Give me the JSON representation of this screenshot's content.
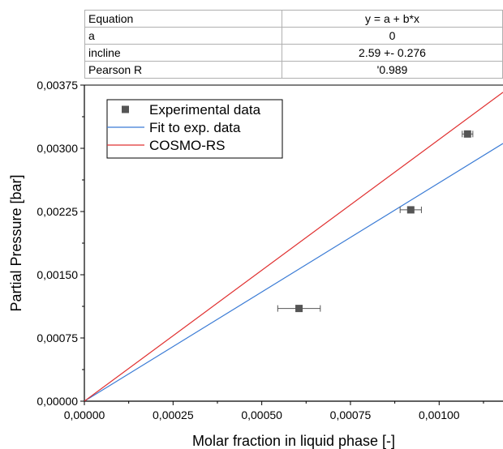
{
  "stats_table": {
    "rows": [
      {
        "label": "Equation",
        "value": "y = a + b*x"
      },
      {
        "label": "a",
        "value": "0"
      },
      {
        "label": "incline",
        "value": "2.59 +- 0.276"
      },
      {
        "label": "Pearson R",
        "value": "'0.989"
      }
    ]
  },
  "chart_data": {
    "type": "scatter",
    "title": "",
    "xlabel": "Molar fraction in liquid phase [-]",
    "ylabel": "Partial Pressure [bar]",
    "xlim": [
      0,
      0.00118
    ],
    "ylim": [
      0,
      0.00375
    ],
    "xticks": [
      0,
      0.00025,
      0.0005,
      0.00075,
      0.001
    ],
    "xtick_labels": [
      "0,00000",
      "0,00025",
      "0,00050",
      "0,00075",
      "0,00100"
    ],
    "yticks": [
      0,
      0.00075,
      0.0015,
      0.00225,
      0.003,
      0.00375
    ],
    "ytick_labels": [
      "0,00000",
      "0,00075",
      "0,00150",
      "0,00225",
      "0,00300",
      "0,00375"
    ],
    "grid": false,
    "legend_position": "top-left",
    "series": [
      {
        "name": "Experimental data",
        "kind": "points",
        "color": "#555555",
        "points": [
          {
            "x": 0.000605,
            "y": 0.0011,
            "xerr": 6e-05
          },
          {
            "x": 0.00092,
            "y": 0.00227,
            "xerr": 3e-05
          },
          {
            "x": 0.00108,
            "y": 0.00317,
            "xerr": 1.5e-05
          }
        ]
      },
      {
        "name": "Fit to exp. data",
        "kind": "line",
        "color": "#3a7bd5",
        "x": [
          0,
          0.00118
        ],
        "y": [
          0,
          0.003057
        ]
      },
      {
        "name": "COSMO-RS",
        "kind": "line",
        "color": "#e03030",
        "x": [
          0,
          0.00118
        ],
        "y": [
          0,
          0.003665
        ]
      }
    ]
  }
}
